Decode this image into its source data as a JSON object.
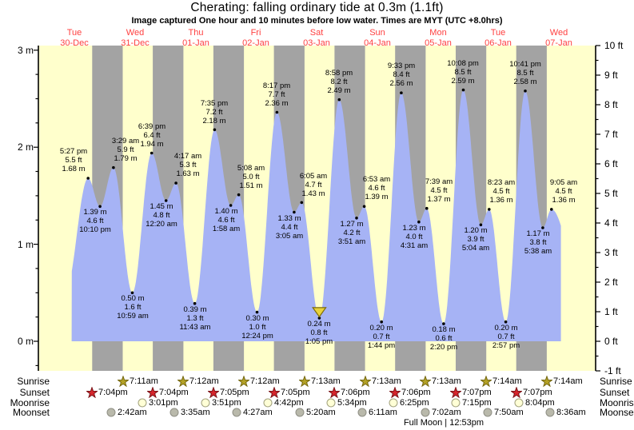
{
  "title": "Cherating: falling  ordinary tide at 0.3m (1.1ft)",
  "subtitle": "Image captured One hour and 10 minutes before low water. Times are MYT (UTC +8.0hrs)",
  "colors": {
    "day_bg": "#ffffcc",
    "night_bg": "#a3a3a3",
    "tide_fill": "#a6b3f5",
    "date_red": "#ff4040",
    "axis_black": "#000000",
    "sunrise_star_fill": "#b3a125",
    "sunrise_star_stroke": "#756812",
    "sunset_star_fill": "#d5252c",
    "sunset_star_stroke": "#7a1418",
    "moonrise_fill": "#ffffd6",
    "moonrise_stroke": "#a0a07c",
    "moonset_fill": "#b9b9ab",
    "moonset_stroke": "#8f8f85",
    "marker_fill": "#e8d23c",
    "marker_stroke": "#7d6b08"
  },
  "days": [
    {
      "weekday": "Tue",
      "date": "30-Dec"
    },
    {
      "weekday": "Wed",
      "date": "31-Dec"
    },
    {
      "weekday": "Thu",
      "date": "01-Jan"
    },
    {
      "weekday": "Fri",
      "date": "02-Jan"
    },
    {
      "weekday": "Sat",
      "date": "03-Jan"
    },
    {
      "weekday": "Sun",
      "date": "04-Jan"
    },
    {
      "weekday": "Mon",
      "date": "05-Jan"
    },
    {
      "weekday": "Tue",
      "date": "06-Jan"
    },
    {
      "weekday": "Wed",
      "date": "07-Jan"
    }
  ],
  "axes": {
    "m_ticks": [
      {
        "v": 3,
        "label": "3 m"
      },
      {
        "v": 2,
        "label": "2 m"
      },
      {
        "v": 1,
        "label": "1 m"
      },
      {
        "v": 0,
        "label": "0 m"
      }
    ],
    "ft_ticks": [
      {
        "v": 10,
        "label": "10 ft"
      },
      {
        "v": 9,
        "label": "9 ft"
      },
      {
        "v": 8,
        "label": "8 ft"
      },
      {
        "v": 7,
        "label": "7 ft"
      },
      {
        "v": 6,
        "label": "6 ft"
      },
      {
        "v": 5,
        "label": "5 ft"
      },
      {
        "v": 4,
        "label": "4 ft"
      },
      {
        "v": 3,
        "label": "3 ft"
      },
      {
        "v": 2,
        "label": "2 ft"
      },
      {
        "v": 1,
        "label": "1 ft"
      },
      {
        "v": 0,
        "label": "0 ft"
      },
      {
        "v": -1,
        "label": "-1 ft"
      }
    ]
  },
  "chart_data": {
    "type": "area",
    "x_unit": "days since Tue 30-Dec 00:00 MYT",
    "y_unit_left": "m",
    "y_unit_right": "ft",
    "ylim_ft": [
      -1,
      10
    ],
    "xlim_t": [
      -0.09,
      9.11
    ],
    "data_window": {
      "lead_low": {
        "t": 0.35,
        "m": 0.5
      },
      "tail_low": {
        "t": 9.0,
        "m": 0.2
      },
      "start_x_t": 0.455,
      "end_x_t": 8.537
    },
    "marker": {
      "point_index": 15,
      "shape": "triangle-down"
    },
    "points": [
      {
        "type": "high",
        "t": 0.7271,
        "m": 1.68,
        "ft": 5.5,
        "time": "5:27 pm",
        "ft_label": "5.5 ft",
        "m_label": "1.68 m"
      },
      {
        "type": "low",
        "t": 0.9236,
        "m": 1.39,
        "ft": 4.6,
        "time": "10:10 pm",
        "ft_label": "4.6 ft",
        "m_label": "1.39 m"
      },
      {
        "type": "high",
        "t": 1.1451,
        "m": 1.79,
        "ft": 5.9,
        "time": "3:29 am",
        "ft_label": "5.9 ft",
        "m_label": "1.79 m"
      },
      {
        "type": "low",
        "t": 1.4576,
        "m": 0.5,
        "ft": 1.6,
        "time": "10:59 am",
        "ft_label": "1.6 ft",
        "m_label": "0.50 m"
      },
      {
        "type": "high",
        "t": 1.7771,
        "m": 1.94,
        "ft": 6.4,
        "time": "6:39 pm",
        "ft_label": "6.4 ft",
        "m_label": "1.94 m"
      },
      {
        "type": "low",
        "t": 2.0139,
        "m": 1.45,
        "ft": 4.8,
        "time": "12:20 am",
        "ft_label": "4.8 ft",
        "m_label": "1.45 m"
      },
      {
        "type": "high",
        "t": 2.1785,
        "m": 1.63,
        "ft": 5.3,
        "time": "4:17 am",
        "ft_label": "5.3 ft",
        "m_label": "1.63 m"
      },
      {
        "type": "low",
        "t": 2.4882,
        "m": 0.39,
        "ft": 1.3,
        "time": "11:43 am",
        "ft_label": "1.3 ft",
        "m_label": "0.39 m"
      },
      {
        "type": "high",
        "t": 2.816,
        "m": 2.18,
        "ft": 7.2,
        "time": "7:35 pm",
        "ft_label": "7.2 ft",
        "m_label": "2.18 m"
      },
      {
        "type": "low",
        "t": 3.0819,
        "m": 1.4,
        "ft": 4.6,
        "time": "1:58 am",
        "ft_label": "4.6 ft",
        "m_label": "1.40 m"
      },
      {
        "type": "high",
        "t": 3.2139,
        "m": 1.51,
        "ft": 5.0,
        "time": "5:08 am",
        "ft_label": "5.0 ft",
        "m_label": "1.51 m"
      },
      {
        "type": "low",
        "t": 3.5167,
        "m": 0.3,
        "ft": 1.0,
        "time": "12:24 pm",
        "ft_label": "1.0 ft",
        "m_label": "0.30 m"
      },
      {
        "type": "high",
        "t": 3.8451,
        "m": 2.36,
        "ft": 7.7,
        "time": "8:17 pm",
        "ft_label": "7.7 ft",
        "m_label": "2.36 m"
      },
      {
        "type": "low",
        "t": 4.1285,
        "m": 1.33,
        "ft": 4.4,
        "time": "3:05 am",
        "ft_label": "4.4 ft",
        "m_label": "1.33 m"
      },
      {
        "type": "high",
        "t": 4.2535,
        "m": 1.43,
        "ft": 4.7,
        "time": "6:05 am",
        "ft_label": "4.7 ft",
        "m_label": "1.43 m"
      },
      {
        "type": "low",
        "t": 4.5451,
        "m": 0.24,
        "ft": 0.8,
        "time": "1:05 pm",
        "ft_label": "0.8 ft",
        "m_label": "0.24 m"
      },
      {
        "type": "high",
        "t": 4.8736,
        "m": 2.49,
        "ft": 8.2,
        "time": "8:58 pm",
        "ft_label": "8.2 ft",
        "m_label": "2.49 m"
      },
      {
        "type": "low",
        "t": 5.1604,
        "m": 1.27,
        "ft": 4.2,
        "time": "3:51 am",
        "ft_label": "4.2 ft",
        "m_label": "1.27 m"
      },
      {
        "type": "high",
        "t": 5.2868,
        "m": 1.39,
        "ft": 4.6,
        "time": "6:53 am",
        "ft_label": "4.6 ft",
        "m_label": "1.39 m"
      },
      {
        "type": "low",
        "t": 5.5722,
        "m": 0.2,
        "ft": 0.7,
        "time": "1:44 pm",
        "ft_label": "0.7 ft",
        "m_label": "0.20 m"
      },
      {
        "type": "high",
        "t": 5.8979,
        "m": 2.56,
        "ft": 8.4,
        "time": "9:33 pm",
        "ft_label": "8.4 ft",
        "m_label": "2.56 m"
      },
      {
        "type": "low",
        "t": 6.1882,
        "m": 1.23,
        "ft": 4.0,
        "time": "4:31 am",
        "ft_label": "4.0 ft",
        "m_label": "1.23 m"
      },
      {
        "type": "high",
        "t": 6.3188,
        "m": 1.37,
        "ft": 4.5,
        "time": "7:39 am",
        "ft_label": "4.5 ft",
        "m_label": "1.37 m"
      },
      {
        "type": "low",
        "t": 6.5972,
        "m": 0.18,
        "ft": 0.6,
        "time": "2:20 pm",
        "ft_label": "0.6 ft",
        "m_label": "0.18 m"
      },
      {
        "type": "high",
        "t": 6.9222,
        "m": 2.59,
        "ft": 8.5,
        "time": "10:08 pm",
        "ft_label": "8.5 ft",
        "m_label": "2.59 m"
      },
      {
        "type": "low",
        "t": 7.2111,
        "m": 1.2,
        "ft": 3.9,
        "time": "5:04 am",
        "ft_label": "3.9 ft",
        "m_label": "1.20 m"
      },
      {
        "type": "high",
        "t": 7.3493,
        "m": 1.36,
        "ft": 4.5,
        "time": "8:23 am",
        "ft_label": "4.5 ft",
        "m_label": "1.36 m"
      },
      {
        "type": "low",
        "t": 7.6229,
        "m": 0.2,
        "ft": 0.7,
        "time": "2:57 pm",
        "ft_label": "0.7 ft",
        "m_label": "0.20 m"
      },
      {
        "type": "high",
        "t": 7.9451,
        "m": 2.58,
        "ft": 8.5,
        "time": "10:41 pm",
        "ft_label": "8.5 ft",
        "m_label": "2.58 m"
      },
      {
        "type": "low",
        "t": 8.2347,
        "m": 1.17,
        "ft": 3.8,
        "time": "5:38 am",
        "ft_label": "3.8 ft",
        "m_label": "1.17 m"
      },
      {
        "type": "high",
        "t": 8.3785,
        "m": 1.36,
        "ft": 4.5,
        "time": "9:05 am",
        "ft_label": "4.5 ft",
        "m_label": "1.36 m"
      }
    ]
  },
  "astro": {
    "rows": [
      {
        "label": "Sunrise",
        "icon": "sunrise-star",
        "events": [
          {
            "t": 1.2993,
            "time": "7:11am"
          },
          {
            "t": 2.3,
            "time": "7:12am"
          },
          {
            "t": 3.3,
            "time": "7:12am"
          },
          {
            "t": 4.3007,
            "time": "7:13am"
          },
          {
            "t": 5.3007,
            "time": "7:13am"
          },
          {
            "t": 6.3007,
            "time": "7:13am"
          },
          {
            "t": 7.3014,
            "time": "7:14am"
          },
          {
            "t": 8.3014,
            "time": "7:14am"
          }
        ]
      },
      {
        "label": "Sunset",
        "icon": "sunset-star",
        "events": [
          {
            "t": 0.7944,
            "time": "7:04pm"
          },
          {
            "t": 1.7944,
            "time": "7:04pm"
          },
          {
            "t": 2.7951,
            "time": "7:05pm"
          },
          {
            "t": 3.7951,
            "time": "7:05pm"
          },
          {
            "t": 4.7958,
            "time": "7:06pm"
          },
          {
            "t": 5.7958,
            "time": "7:06pm"
          },
          {
            "t": 6.7965,
            "time": "7:07pm"
          },
          {
            "t": 7.7965,
            "time": "7:07pm"
          }
        ]
      },
      {
        "label": "Moonrise",
        "icon": "moonrise-circle",
        "events": [
          {
            "t": 1.6257,
            "time": "3:01pm"
          },
          {
            "t": 2.6604,
            "time": "3:51pm"
          },
          {
            "t": 3.6958,
            "time": "4:42pm"
          },
          {
            "t": 4.7319,
            "time": "5:34pm"
          },
          {
            "t": 5.7674,
            "time": "6:25pm"
          },
          {
            "t": 6.8021,
            "time": "7:15pm"
          },
          {
            "t": 7.8361,
            "time": "8:04pm"
          }
        ]
      },
      {
        "label": "Moonset",
        "icon": "moonset-circle",
        "events": [
          {
            "t": 1.1125,
            "time": "2:42am"
          },
          {
            "t": 2.1493,
            "time": "3:35am"
          },
          {
            "t": 3.1854,
            "time": "4:27am"
          },
          {
            "t": 4.2222,
            "time": "5:20am"
          },
          {
            "t": 5.2576,
            "time": "6:11am"
          },
          {
            "t": 6.2931,
            "time": "7:02am"
          },
          {
            "t": 7.3264,
            "time": "7:50am"
          },
          {
            "t": 8.3583,
            "time": "8:36am"
          }
        ]
      }
    ],
    "footnote": "Full Moon | 12:53pm"
  }
}
